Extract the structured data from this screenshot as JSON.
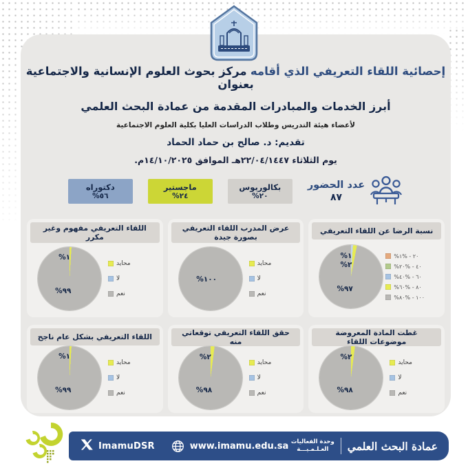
{
  "header": {
    "title_part1": "إحصائية اللقاء التعريفي الذي أقامه",
    "title_part2": "مركز بحوث العلوم الإنسانية والاجتماعية بعنوان",
    "subtitle": "أبرز الخدمات والمبادرات المقدمة من عمادة البحث العلمي",
    "audience_line": "لأعضاء هيئة التدريس وطلاب الدراسات العليا بكلية العلوم الاجتماعية",
    "presenter_line": "تقديم: د. صالح بن حماد الحماد",
    "date_line": "يوم الثلاثاء ٢٢/٠٤/١٤٤٧هـ الموافق ١٤/١٠/٢٠٢٥م."
  },
  "attendance": {
    "label": "عدد الحضور",
    "count": "٨٧"
  },
  "degrees": [
    {
      "label": "بكالوريوس",
      "value": "%٢٠",
      "color": "#d2d0cc"
    },
    {
      "label": "ماجستير",
      "value": "%٢٤",
      "color": "#ccd636"
    },
    {
      "label": "دكتوراه",
      "value": "%٥٦",
      "color": "#8ca4c6"
    }
  ],
  "chart_data": [
    {
      "type": "pie",
      "title": "نسبة الرضا عن اللقاء التعريفي",
      "legend_position": "right",
      "slices": [
        {
          "label": "%٦٠ - %٤٠",
          "display": "%١",
          "value": 1,
          "color": "#c3d6ec"
        },
        {
          "label": "%٨٠ - %٦٠",
          "display": "%٢",
          "value": 2,
          "color": "#e7eb52"
        },
        {
          "label": "%١٠٠ - %٨٠",
          "display": "%٩٧",
          "value": 97,
          "color": "#b9b8b5"
        }
      ],
      "legend": [
        {
          "label": "%٢٠ - %١",
          "color": "#e5a97d"
        },
        {
          "label": "%٤٠ - %٢٠",
          "color": "#b3ca8c"
        },
        {
          "label": "%٦٠ - %٤٠",
          "color": "#a6c3e3"
        },
        {
          "label": "%٨٠ - %٦٠",
          "color": "#e7eb52"
        },
        {
          "label": "%١٠٠ - %٨٠",
          "color": "#b9b8b5"
        }
      ]
    },
    {
      "type": "pie",
      "title": "عرض المدرب اللقاء التعريفي بصورة جيدة",
      "legend_position": "right",
      "slices": [
        {
          "label": "نعم",
          "display": "%١٠٠",
          "value": 100,
          "color": "#b9b8b5"
        }
      ],
      "legend": [
        {
          "label": "محايد",
          "color": "#e7eb52"
        },
        {
          "label": "لا",
          "color": "#a6c3e3"
        },
        {
          "label": "نعم",
          "color": "#b9b8b5"
        }
      ]
    },
    {
      "type": "pie",
      "title": "اللقاء التعريفي مفهوم وغير مكرر",
      "legend_position": "right",
      "slices": [
        {
          "label": "محايد",
          "display": "%١",
          "value": 1,
          "color": "#e7eb52"
        },
        {
          "label": "نعم",
          "display": "%٩٩",
          "value": 99,
          "color": "#b9b8b5"
        }
      ],
      "legend": [
        {
          "label": "محايد",
          "color": "#e7eb52"
        },
        {
          "label": "لا",
          "color": "#a6c3e3"
        },
        {
          "label": "نعم",
          "color": "#b9b8b5"
        }
      ]
    },
    {
      "type": "pie",
      "title": "غطت المادة المعروضة موضوعات اللقاء",
      "legend_position": "right",
      "slices": [
        {
          "label": "محايد",
          "display": "%٢",
          "value": 2,
          "color": "#e7eb52"
        },
        {
          "label": "نعم",
          "display": "%٩٨",
          "value": 98,
          "color": "#b9b8b5"
        }
      ],
      "legend": [
        {
          "label": "محايد",
          "color": "#e7eb52"
        },
        {
          "label": "لا",
          "color": "#a6c3e3"
        },
        {
          "label": "نعم",
          "color": "#b9b8b5"
        }
      ]
    },
    {
      "type": "pie",
      "title": "حقق اللقاء التعريفي توقعاتي منه",
      "legend_position": "right",
      "slices": [
        {
          "label": "محايد",
          "display": "%٢",
          "value": 2,
          "color": "#e7eb52"
        },
        {
          "label": "نعم",
          "display": "%٩٨",
          "value": 98,
          "color": "#b9b8b5"
        }
      ],
      "legend": [
        {
          "label": "محايد",
          "color": "#e7eb52"
        },
        {
          "label": "لا",
          "color": "#a6c3e3"
        },
        {
          "label": "نعم",
          "color": "#b9b8b5"
        }
      ]
    },
    {
      "type": "pie",
      "title": "اللقاء التعريفي بشكل عام ناجح",
      "legend_position": "right",
      "slices": [
        {
          "label": "محايد",
          "display": "%١",
          "value": 1,
          "color": "#e7eb52"
        },
        {
          "label": "نعم",
          "display": "%٩٩",
          "value": 99,
          "color": "#b9b8b5"
        }
      ],
      "legend": [
        {
          "label": "محايد",
          "color": "#e7eb52"
        },
        {
          "label": "لا",
          "color": "#a6c3e3"
        },
        {
          "label": "نعم",
          "color": "#b9b8b5"
        }
      ]
    }
  ],
  "footer": {
    "x_handle": "ImamuDSR",
    "website": "www.imamu.edu.sa",
    "unit_line1": "وحدة الفعاليات",
    "unit_line2": "العـلـمـيـــة",
    "deanship_wordmark": "عمادة البحث العلمي",
    "bar_color": "#2d4e88",
    "logo_color": "#c3d32f"
  },
  "icons": {
    "attendance": "meeting-people-icon",
    "x": "x-logo-icon",
    "globe": "globe-icon",
    "university": "university-crest-icon",
    "deanship": "deanship-flower-icon"
  }
}
